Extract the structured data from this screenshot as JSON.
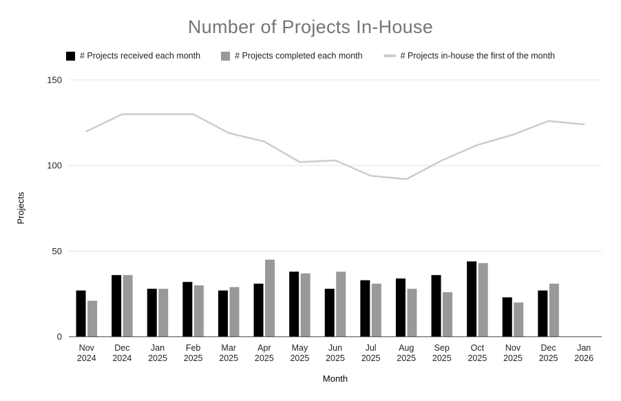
{
  "title": "Number of Projects In-House",
  "legend": [
    {
      "label": "# Projects received each month",
      "color": "#000000",
      "marker": "square"
    },
    {
      "label": "# Projects completed each month",
      "color": "#999999",
      "marker": "square"
    },
    {
      "label": "# Projects in-house the first of the month",
      "color": "#cccccc",
      "marker": "line"
    }
  ],
  "axes": {
    "x_title": "Month",
    "y_title": "Projects"
  },
  "colors": {
    "title_text": "#757575",
    "received_bar": "#000000",
    "completed_bar": "#999999",
    "inhouse_line": "#cccccc",
    "gridline": "#e3e3e3",
    "axis_line": "#444444",
    "tick_label": "#222222"
  },
  "chart_data": {
    "type": "bar",
    "subtype": "grouped-bars-with-line-overlay",
    "title": "Number of Projects In-House",
    "xlabel": "Month",
    "ylabel": "Projects",
    "ylim": [
      0,
      150
    ],
    "yticks": [
      0,
      50,
      100,
      150
    ],
    "grid": true,
    "legend_position": "top",
    "categories": [
      "Nov 2024",
      "Dec 2024",
      "Jan 2025",
      "Feb 2025",
      "Mar 2025",
      "Apr 2025",
      "May 2025",
      "Jun 2025",
      "Jul 2025",
      "Aug 2025",
      "Sep 2025",
      "Oct 2025",
      "Nov 2025",
      "Dec 2025",
      "Jan 2026"
    ],
    "series": [
      {
        "name": "# Projects received each month",
        "type": "bar",
        "color": "#000000",
        "values": [
          27,
          36,
          28,
          32,
          27,
          31,
          38,
          28,
          33,
          34,
          36,
          44,
          23,
          27,
          null
        ]
      },
      {
        "name": "# Projects completed each month",
        "type": "bar",
        "color": "#999999",
        "values": [
          21,
          36,
          28,
          30,
          29,
          45,
          37,
          38,
          31,
          28,
          26,
          43,
          20,
          31,
          null
        ]
      },
      {
        "name": "# Projects in-house the first of the month",
        "type": "line",
        "color": "#cccccc",
        "values": [
          120,
          130,
          130,
          130,
          119,
          114,
          102,
          103,
          94,
          92,
          103,
          112,
          118,
          126,
          124
        ]
      }
    ]
  }
}
